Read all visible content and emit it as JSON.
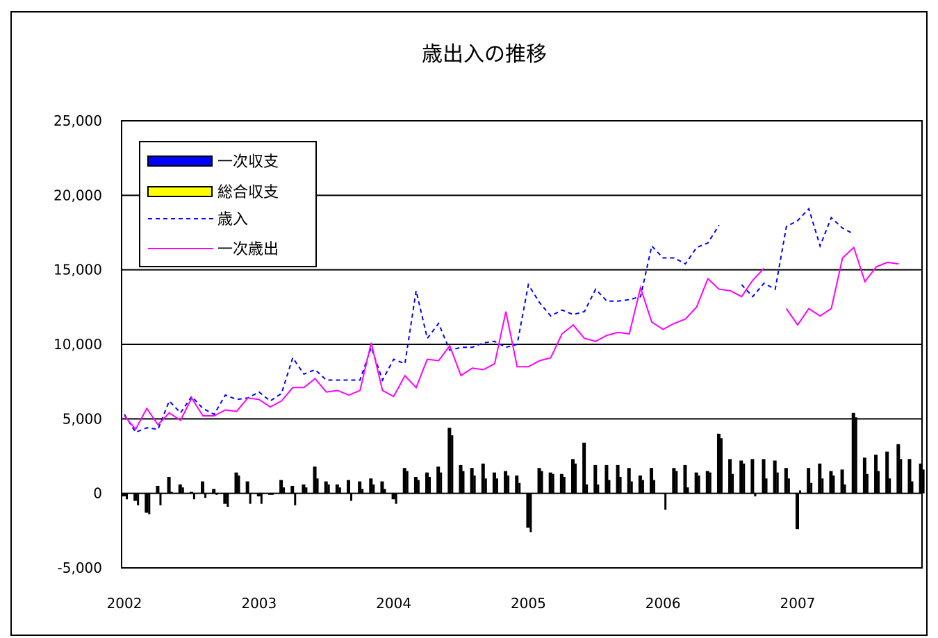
{
  "chart_data": {
    "type": "bar+line",
    "title": "歳出入の推移",
    "xlabel": "",
    "ylabel": "",
    "ylim": [
      -5000,
      25000
    ],
    "yticks": [
      "25,000",
      "20,000",
      "15,000",
      "10,000",
      "5,000",
      "0",
      "-5,000"
    ],
    "ytick_values": [
      25000,
      20000,
      15000,
      10000,
      5000,
      0,
      -5000
    ],
    "xticks": [
      "2002",
      "2003",
      "2004",
      "2005",
      "2006",
      "2007"
    ],
    "grid": true,
    "legend_position": "top-left",
    "colors": {
      "primary_balance_legend": "#0000ff",
      "overall_balance_legend": "#ffff00",
      "revenue": "#0000ff",
      "primary_expenditure": "#ff00ff",
      "bars": "#000000"
    },
    "series": [
      {
        "name": "一次収支",
        "kind": "bar",
        "values": [
          -200,
          -500,
          -1300,
          500,
          1100,
          600,
          100,
          800,
          300,
          -700,
          1400,
          800,
          -200,
          -100,
          900,
          500,
          600,
          1800,
          800,
          600,
          900,
          800,
          1000,
          800,
          -400,
          1700,
          1100,
          1400,
          1800,
          4400,
          1900,
          1700,
          2000,
          1400,
          1500,
          1200,
          -2300,
          1700,
          1400,
          1300,
          2300,
          3400,
          1900,
          1900,
          1900,
          1700,
          1200,
          1700,
          0,
          1700,
          1900,
          1400,
          1500,
          4000,
          2300,
          2200,
          2300,
          2300,
          2200,
          1700,
          -2400,
          1700,
          2000,
          1500,
          1600,
          5400,
          2400,
          2600,
          2800,
          3300,
          2300,
          2000
        ]
      },
      {
        "name": "総合収支",
        "kind": "bar",
        "values": [
          -400,
          -800,
          -1400,
          -800,
          100,
          400,
          -400,
          -300,
          -100,
          -900,
          1200,
          -700,
          -700,
          -100,
          400,
          -800,
          400,
          1000,
          600,
          400,
          -500,
          300,
          600,
          300,
          -700,
          1500,
          900,
          1100,
          1400,
          3900,
          1500,
          1200,
          1000,
          1000,
          1200,
          700,
          -2600,
          1500,
          1300,
          1100,
          2000,
          600,
          600,
          900,
          1100,
          800,
          900,
          900,
          -1100,
          1500,
          400,
          1200,
          1400,
          3700,
          1300,
          2000,
          -200,
          1000,
          1400,
          1000,
          200,
          700,
          1000,
          1200,
          600,
          5100,
          1300,
          1500,
          1000,
          2300,
          800,
          1600
        ]
      },
      {
        "name": "歳入",
        "kind": "line",
        "style": "dashed",
        "values": [
          5300,
          4100,
          4400,
          4300,
          6200,
          5400,
          6500,
          5700,
          5300,
          6600,
          6300,
          6400,
          6800,
          6200,
          6700,
          9100,
          8000,
          8300,
          7600,
          7600,
          7600,
          7600,
          9800,
          7600,
          9000,
          8700,
          13600,
          10400,
          11400,
          9600,
          9800,
          9800,
          10100,
          10200,
          9800,
          10000,
          14000,
          12800,
          11900,
          12300,
          12000,
          12200,
          13700,
          12900,
          12900,
          13000,
          13200,
          16600,
          15800,
          15800,
          15400,
          16500,
          16800,
          18000,
          null,
          14000,
          13200,
          14100,
          13700,
          17900,
          18300,
          19100,
          16600,
          18500,
          17800,
          17400
        ]
      },
      {
        "name": "一次歳出",
        "kind": "line",
        "style": "solid",
        "values": [
          5200,
          4300,
          5700,
          4600,
          5400,
          4900,
          6400,
          5200,
          5200,
          5600,
          5500,
          6400,
          6300,
          5800,
          6200,
          7100,
          7100,
          7700,
          6800,
          6900,
          6600,
          6900,
          10100,
          6900,
          6500,
          7900,
          7100,
          9000,
          8900,
          9900,
          7900,
          8400,
          8300,
          8700,
          12200,
          8500,
          8500,
          8900,
          9100,
          10700,
          11300,
          10400,
          10200,
          10600,
          10800,
          10700,
          13800,
          11500,
          11000,
          11400,
          11700,
          12500,
          14400,
          13700,
          13600,
          13200,
          14300,
          15100,
          null,
          12400,
          11300,
          12400,
          11900,
          12400,
          15800,
          16500,
          14200,
          15200,
          15500,
          15400
        ]
      }
    ]
  }
}
